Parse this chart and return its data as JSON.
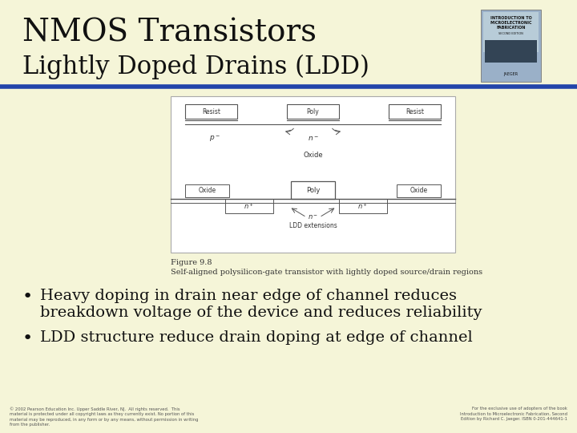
{
  "slide_bg": "#f5f5d8",
  "title": "NMOS Transistors",
  "subtitle": "Lightly Doped Drains (LDD)",
  "title_color": "#111111",
  "subtitle_color": "#111111",
  "divider_color": "#2244aa",
  "bullet1_line1": "Heavy doping in drain near edge of channel reduces",
  "bullet1_line2": "breakdown voltage of the device and reduces reliability",
  "bullet2": "LDD structure reduce drain doping at edge of channel",
  "bullet_color": "#111111",
  "fig_caption1": "Figure 9.8",
  "fig_caption2": "Self-aligned polysilicon-gate transistor with lightly doped source/drain regions",
  "footer_left": "© 2002 Pearson Education Inc. Upper Saddle River, NJ.  All rights reserved.  This\nmaterial is protected under all copyright laws as they currently exist. No portion of this\nmaterial may be reproduced, in any form or by any means, without permission in writing\nfrom the publisher.",
  "footer_right": "For the exclusive use of adopters of the book\nIntroduction to Microelectronic Fabrication, Second\nEdition by Richard C. Jaeger. ISBN 0-201-444641-1"
}
